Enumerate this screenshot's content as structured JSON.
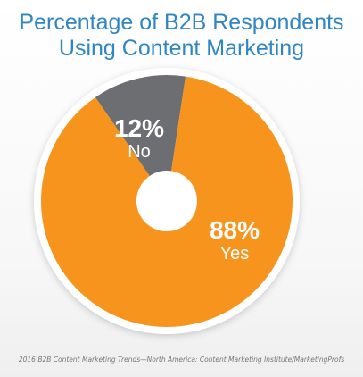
{
  "title_lines": [
    "Percentage of B2B Respondents",
    "Using Content Marketing"
  ],
  "source": "2016 B2B Content Marketing Trends—North America: Content Marketing Institute/MarketingProfs",
  "chart_data": {
    "type": "pie",
    "title": "Percentage of B2B Respondents Using Content Marketing",
    "donut": true,
    "slices": [
      {
        "label": "Yes",
        "value": 88,
        "value_label": "88%",
        "color": "#f7941d"
      },
      {
        "label": "No",
        "value": 12,
        "value_label": "12%",
        "color": "#6d6e71"
      }
    ]
  }
}
